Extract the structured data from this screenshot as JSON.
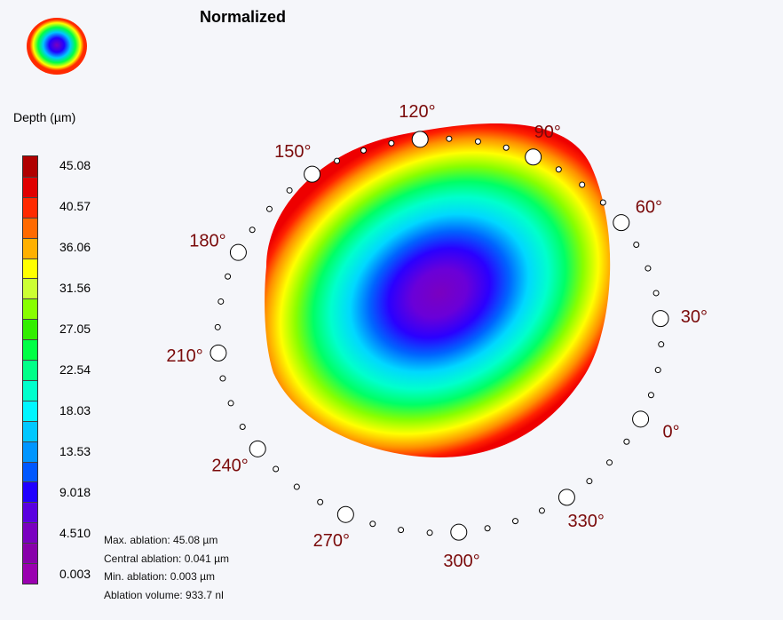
{
  "title": "Normalized",
  "colorbar": {
    "label": "Depth (µm)",
    "ticks": [
      "45.08",
      "40.57",
      "36.06",
      "31.56",
      "27.05",
      "22.54",
      "18.03",
      "13.53",
      "9.018",
      "4.510",
      "0.003"
    ],
    "colors": [
      "#b00000",
      "#e00000",
      "#ff2a00",
      "#ff6a00",
      "#ffb000",
      "#ffff00",
      "#ccff33",
      "#88ff00",
      "#33ee00",
      "#00ff44",
      "#00ff88",
      "#00ffcc",
      "#00f6ff",
      "#00c8ff",
      "#0096ff",
      "#0058ff",
      "#2000ff",
      "#5a00e0",
      "#7a00c0",
      "#8800aa",
      "#9a00b0"
    ]
  },
  "stats": {
    "max": "Max. ablation: 45.08 µm",
    "central": "Central ablation: 0.041 µm",
    "min": "Min. ablation: 0.003 µm",
    "volume": "Ablation volume: 933.7 nl"
  },
  "chart_data": {
    "type": "heatmap",
    "title": "Normalized",
    "colorbar_label": "Depth (µm)",
    "colorbar_range": [
      0.003,
      45.08
    ],
    "colorbar_ticks": [
      45.08,
      40.57,
      36.06,
      31.56,
      27.05,
      22.54,
      18.03,
      13.53,
      9.018,
      4.51,
      0.003
    ],
    "angle_labels": [
      "0°",
      "30°",
      "60°",
      "90°",
      "120°",
      "150°",
      "180°",
      "210°",
      "240°",
      "270°",
      "300°",
      "330°"
    ],
    "annotations": [
      "Max. ablation: 45.08 µm",
      "Central ablation: 0.041 µm",
      "Min. ablation: 0.003 µm",
      "Ablation volume: 933.7 nl"
    ]
  }
}
